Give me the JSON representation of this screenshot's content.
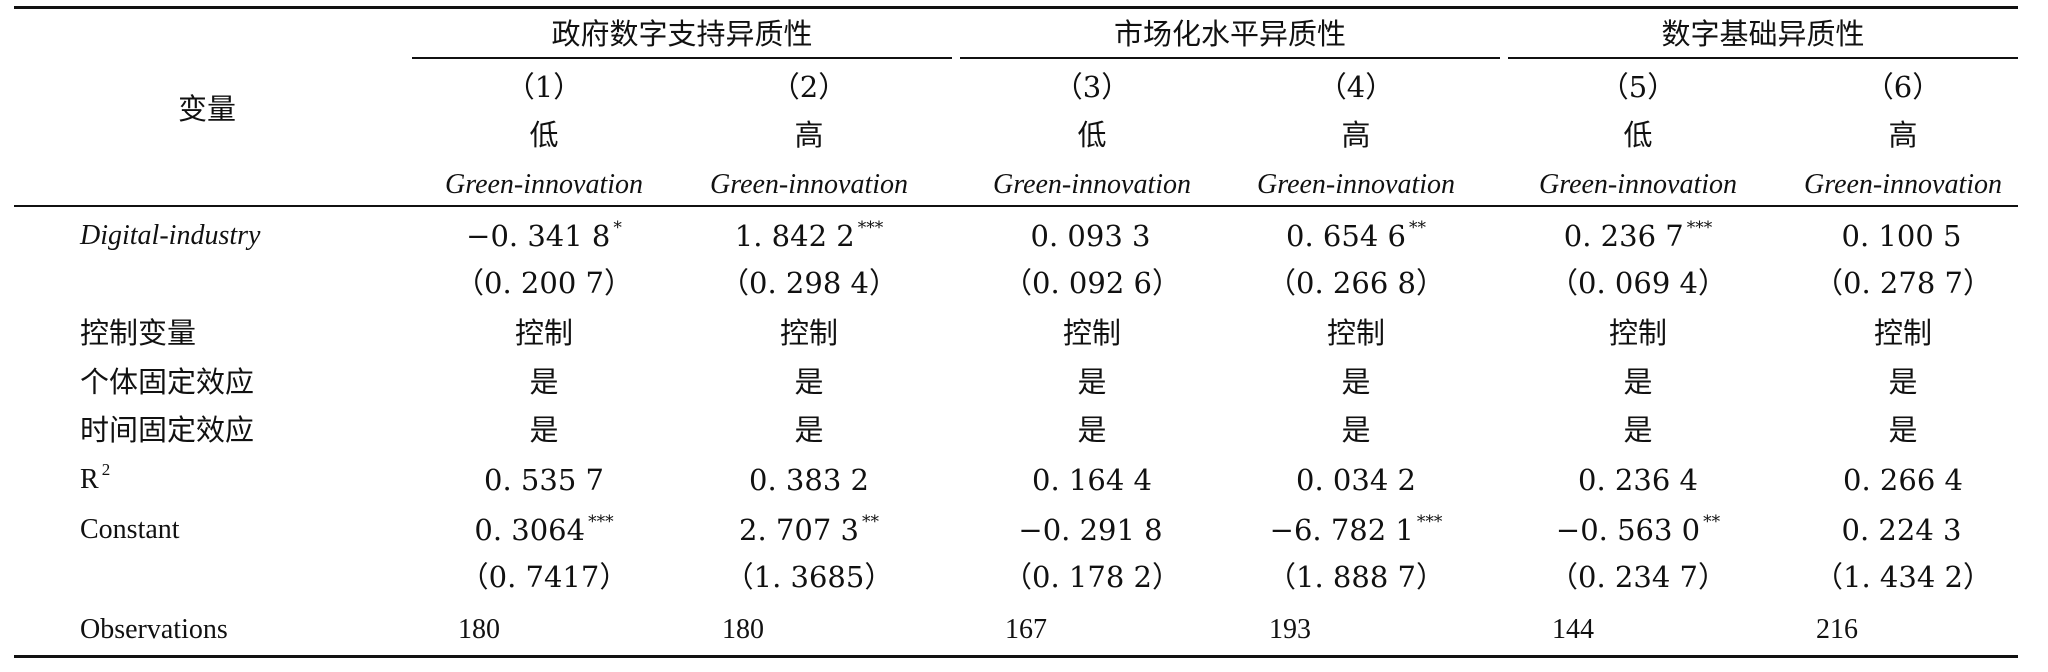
{
  "header": {
    "variable_label": "变量",
    "groups": [
      "政府数字支持异质性",
      "市场化水平异质性",
      "数字基础异质性"
    ],
    "columns": [
      {
        "num": "（1）",
        "level": "低",
        "dep": "Green-innovation"
      },
      {
        "num": "（2）",
        "level": "高",
        "dep": "Green-innovation"
      },
      {
        "num": "（3）",
        "level": "低",
        "dep": "Green-innovation"
      },
      {
        "num": "（4）",
        "level": "高",
        "dep": "Green-innovation"
      },
      {
        "num": "（5）",
        "level": "低",
        "dep": "Green-innovation"
      },
      {
        "num": "（6）",
        "level": "高",
        "dep": "Green-innovation"
      }
    ]
  },
  "rows": {
    "digital": {
      "label": "Digital-industry",
      "coefs": [
        {
          "v": "−0. 341 8",
          "s": "*"
        },
        {
          "v": "1. 842 2",
          "s": "***"
        },
        {
          "v": "0. 093 3",
          "s": ""
        },
        {
          "v": "0. 654 6",
          "s": "**"
        },
        {
          "v": "0. 236 7",
          "s": "***"
        },
        {
          "v": "0. 100 5",
          "s": ""
        }
      ],
      "se": [
        "（0. 200 7）",
        "（0. 298 4）",
        "（0. 092 6）",
        "（0. 266 8）",
        "（0. 069 4）",
        "（0. 278 7）"
      ]
    },
    "controls": {
      "label": "控制变量",
      "values": [
        "控制",
        "控制",
        "控制",
        "控制",
        "控制",
        "控制"
      ]
    },
    "individual_fe": {
      "label": "个体固定效应",
      "values": [
        "是",
        "是",
        "是",
        "是",
        "是",
        "是"
      ]
    },
    "time_fe": {
      "label": "时间固定效应",
      "values": [
        "是",
        "是",
        "是",
        "是",
        "是",
        "是"
      ]
    },
    "r2": {
      "label": "R",
      "label_sup": "2",
      "values": [
        "0. 535 7",
        "0. 383 2",
        "0. 164 4",
        "0. 034 2",
        "0. 236 4",
        "0. 266 4"
      ]
    },
    "constant": {
      "label": "Constant",
      "coefs": [
        {
          "v": "0. 3064",
          "s": "***"
        },
        {
          "v": "2. 707 3",
          "s": "**"
        },
        {
          "v": "−0. 291 8",
          "s": ""
        },
        {
          "v": "−6. 782 1",
          "s": "***"
        },
        {
          "v": "−0. 563 0",
          "s": "**"
        },
        {
          "v": "0. 224 3",
          "s": ""
        }
      ],
      "se": [
        "（0. 7417）",
        "（1. 3685）",
        "（0. 178 2）",
        "（1. 888 7）",
        "（0. 234 7）",
        "（1. 434 2）"
      ]
    },
    "observations": {
      "label": "Observations",
      "values": [
        "180",
        "180",
        "167",
        "193",
        "144",
        "216"
      ]
    }
  }
}
